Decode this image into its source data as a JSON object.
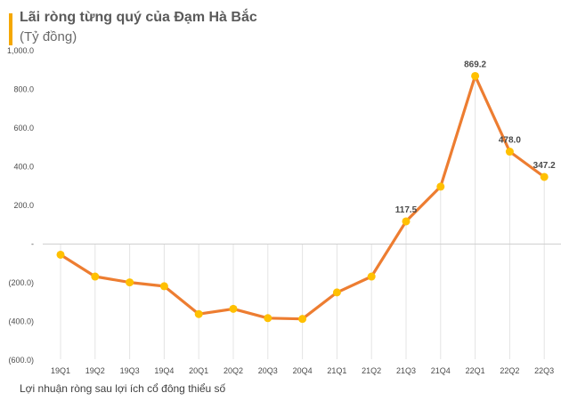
{
  "chart_data": {
    "type": "line",
    "title": "Lãi ròng từng quý của Đạm Hà Bắc",
    "subtitle": "(Tỷ đồng)",
    "footnote": "Lợi nhuận ròng sau lợi ích cổ đông thiểu số",
    "categories": [
      "19Q1",
      "19Q2",
      "19Q3",
      "19Q4",
      "20Q1",
      "20Q2",
      "20Q3",
      "20Q4",
      "21Q1",
      "21Q2",
      "21Q3",
      "21Q4",
      "22Q1",
      "22Q2",
      "22Q3"
    ],
    "series": [
      {
        "name": "Lợi nhuận ròng",
        "values": [
          -55,
          -168,
          -198,
          -218,
          -362,
          -335,
          -383,
          -387,
          -250,
          -168,
          117.5,
          297,
          869.2,
          478.0,
          347.2
        ]
      }
    ],
    "data_labels": [
      {
        "index": 10,
        "text": "117.5"
      },
      {
        "index": 12,
        "text": "869.2"
      },
      {
        "index": 13,
        "text": "478.0"
      },
      {
        "index": 14,
        "text": "347.2"
      }
    ],
    "yticks": [
      {
        "value": 1000,
        "label": "1,000.0"
      },
      {
        "value": 800,
        "label": "800.0"
      },
      {
        "value": 600,
        "label": "600.0"
      },
      {
        "value": 400,
        "label": "400.0"
      },
      {
        "value": 200,
        "label": "200.0"
      },
      {
        "value": 0,
        "label": "-"
      },
      {
        "value": -200,
        "label": "(200.0)"
      },
      {
        "value": -400,
        "label": "(400.0)"
      },
      {
        "value": -600,
        "label": "(600.0)"
      }
    ],
    "ylim": [
      -600,
      1000
    ],
    "line_color": "#ed7d31",
    "marker_color": "#ffc000",
    "accent_color": "#f5a800"
  }
}
